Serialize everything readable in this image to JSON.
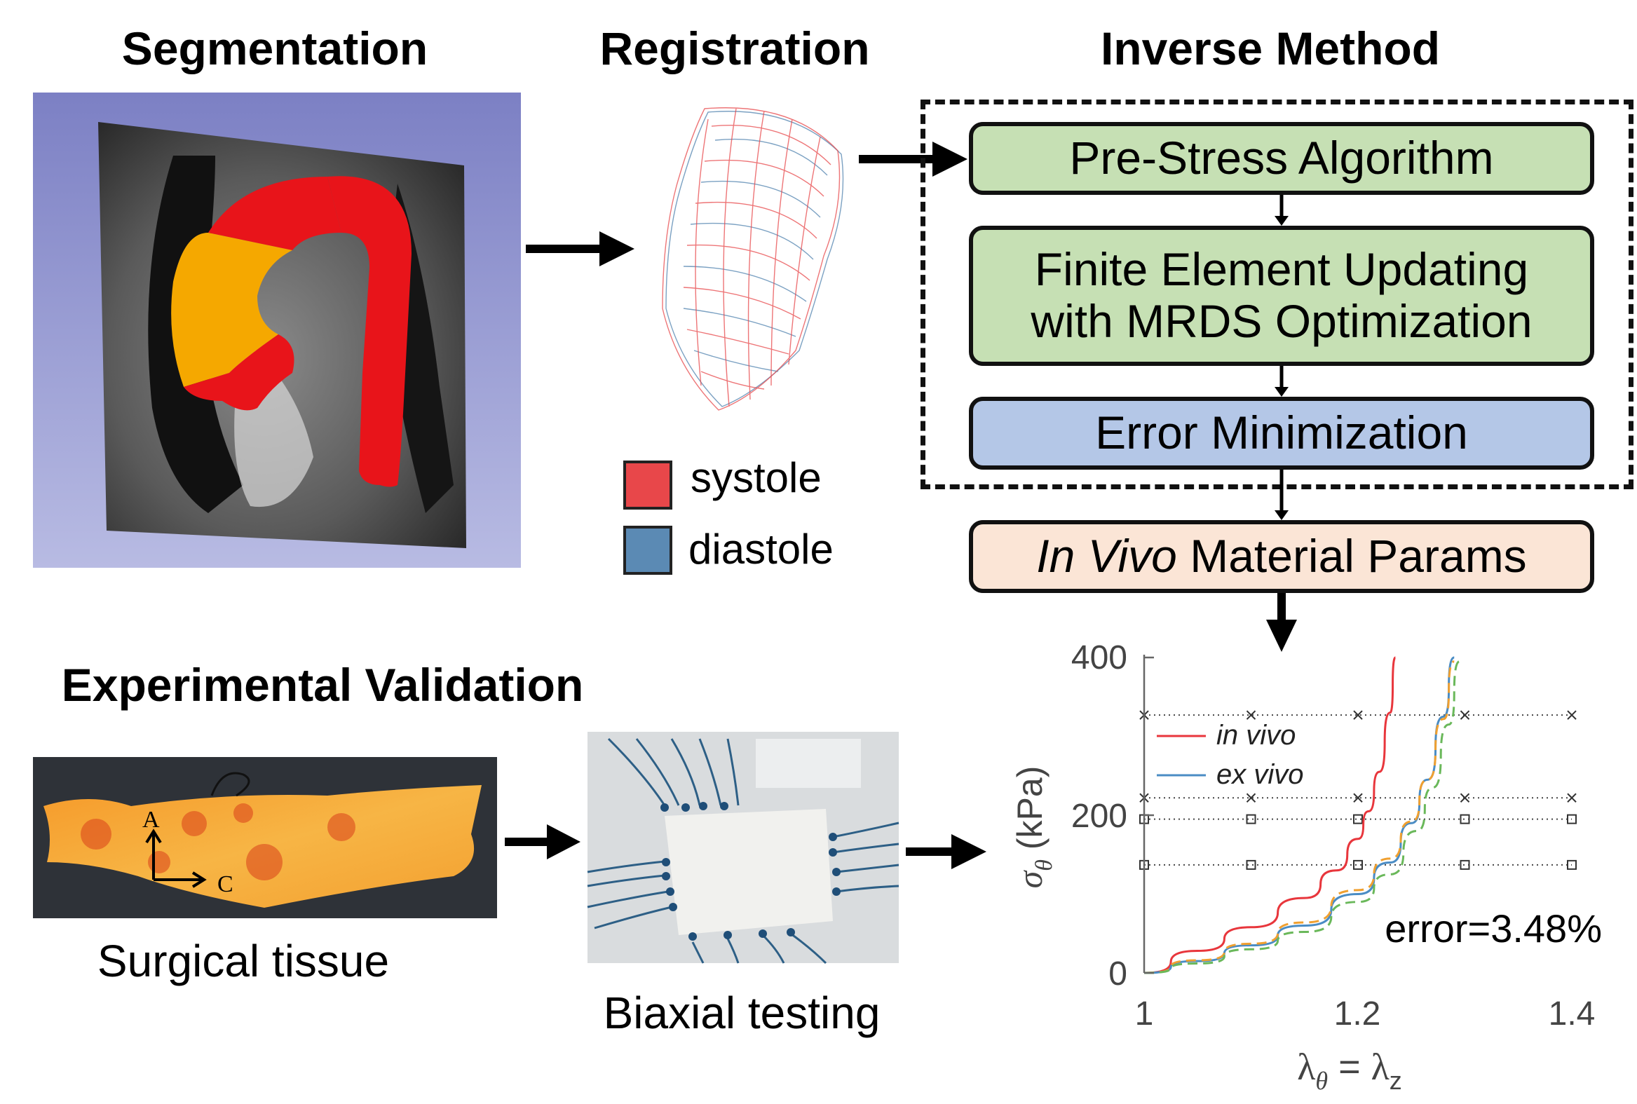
{
  "headings": {
    "segmentation": "Segmentation",
    "registration": "Registration",
    "inverse": "Inverse Method",
    "validation": "Experimental Validation"
  },
  "steps": {
    "prestress": "Pre-Stress Algorithm",
    "feu_line1": "Finite Element Updating",
    "feu_line2": "with MRDS Optimization",
    "error_min": "Error Minimization",
    "params_italic": "In Vivo",
    "params_rest": " Material Params"
  },
  "legend": {
    "items": [
      {
        "label": "systole",
        "color": "#e8474a"
      },
      {
        "label": "diastole",
        "color": "#5b8ab4"
      }
    ]
  },
  "captions": {
    "tissue": "Surgical tissue",
    "biaxial": "Biaxial testing"
  },
  "tissue_axes": {
    "a": "A",
    "c": "C"
  },
  "colors": {
    "green": "#c6e0b4",
    "blue": "#b4c7e7",
    "peach": "#fbe5d6",
    "aorta_red": "#e8141a",
    "aorta_orange": "#f5a800",
    "background_purple": "#8d8fcc"
  },
  "chart_data": {
    "type": "line",
    "xlim": [
      1,
      1.4
    ],
    "ylim": [
      0,
      400
    ],
    "xticks": [
      "1",
      "1.2",
      "1.4"
    ],
    "yticks": [
      "0",
      "200",
      "400"
    ],
    "ylabel_main": "σ",
    "ylabel_sub": "θ",
    "ylabel_unit": " (kPa)",
    "xlabel_left": "λ",
    "xlabel_left_sub": "θ",
    "xlabel_eq": " = ",
    "xlabel_right": "λ",
    "xlabel_right_sub": "z",
    "annotation": "error=3.48%",
    "legend_placement": "top-left",
    "series": [
      {
        "name": "in vivo",
        "color": "#e8363c",
        "style": "solid",
        "x": [
          1.0,
          1.05,
          1.1,
          1.15,
          1.18,
          1.2,
          1.21,
          1.22,
          1.23,
          1.235
        ],
        "y": [
          0,
          28,
          58,
          95,
          130,
          170,
          205,
          255,
          330,
          400
        ]
      },
      {
        "name": "ex vivo",
        "color": "#4a8cc4",
        "style": "solid",
        "x": [
          1.0,
          1.05,
          1.1,
          1.15,
          1.2,
          1.23,
          1.25,
          1.265,
          1.28,
          1.29
        ],
        "y": [
          0,
          15,
          35,
          60,
          100,
          140,
          190,
          245,
          325,
          400
        ]
      },
      {
        "name": "",
        "color": "#f0a030",
        "style": "dashed",
        "x": [
          1.0,
          1.05,
          1.1,
          1.15,
          1.2,
          1.23,
          1.25,
          1.265,
          1.28,
          1.29
        ],
        "y": [
          0,
          16,
          37,
          64,
          105,
          145,
          192,
          245,
          322,
          395
        ]
      },
      {
        "name": "",
        "color": "#6ab85a",
        "style": "dashed",
        "x": [
          1.0,
          1.05,
          1.1,
          1.15,
          1.2,
          1.23,
          1.255,
          1.27,
          1.285,
          1.295
        ],
        "y": [
          0,
          12,
          30,
          52,
          90,
          125,
          180,
          235,
          315,
          395
        ]
      }
    ],
    "reference_lines": [
      {
        "y": 327,
        "marker": "x",
        "x": [
          1.0,
          1.1,
          1.2,
          1.3,
          1.4
        ]
      },
      {
        "y": 222,
        "marker": "x",
        "x": [
          1.0,
          1.1,
          1.2,
          1.3,
          1.4
        ]
      },
      {
        "y": 195,
        "marker": "square",
        "x": [
          1.0,
          1.1,
          1.2,
          1.3,
          1.4
        ]
      },
      {
        "y": 137,
        "marker": "square",
        "x": [
          1.0,
          1.1,
          1.2,
          1.3,
          1.4
        ]
      }
    ]
  }
}
